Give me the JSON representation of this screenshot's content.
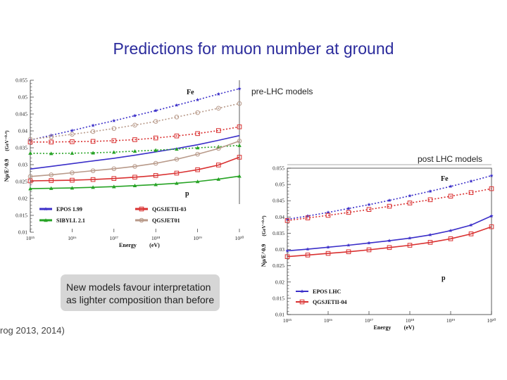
{
  "slide": {
    "title": "Predictions for muon number at ground",
    "callout": "New models favour interpretation\nas lighter composition than before",
    "reference": "rog 2013, 2014)"
  },
  "colors": {
    "title": "#2b2b9c",
    "epos": "#3b2fc9",
    "qgs": "#d93030",
    "sibyll": "#26a324",
    "qgs01": "#b89a8a"
  },
  "chart_data": [
    {
      "type": "line",
      "panel_label": "pre-LHC models",
      "xlabel": "Energy",
      "xunit": "(eV)",
      "ylabel": "Nμ/E^0.9",
      "yunit": "(GeV⁻⁰·⁹)",
      "xscale": "log",
      "xlim": [
        15,
        20
      ],
      "ylim": [
        0.01,
        0.055
      ],
      "xticks": [
        "10¹⁵",
        "10¹⁶",
        "10¹⁷",
        "10¹⁸",
        "10¹⁹",
        "10²⁰"
      ],
      "yticks": [
        "0.01",
        "0.015",
        "0.02",
        "0.025",
        "0.03",
        "0.035",
        "0.04",
        "0.045",
        "0.05",
        "0.055"
      ],
      "primary_labels": [
        "Fe",
        "p"
      ],
      "legend_placement": "bottom",
      "series": [
        {
          "name": "EPOS 1.99",
          "color": "epos",
          "marker": "star",
          "group": "Fe",
          "x": [
            15,
            15.5,
            16,
            16.5,
            17,
            17.5,
            18,
            18.5,
            19,
            19.5,
            20
          ],
          "y": [
            0.0373,
            0.0387,
            0.0401,
            0.0416,
            0.043,
            0.0445,
            0.046,
            0.0476,
            0.0492,
            0.0509,
            0.0525
          ]
        },
        {
          "name": "EPOS 1.99",
          "color": "epos",
          "marker": "none",
          "group": "p",
          "x": [
            15,
            15.5,
            16,
            16.5,
            17,
            17.5,
            18,
            18.5,
            19,
            19.5,
            20
          ],
          "y": [
            0.0287,
            0.0295,
            0.0303,
            0.0311,
            0.0319,
            0.0328,
            0.0338,
            0.0348,
            0.0359,
            0.0372,
            0.0386
          ]
        },
        {
          "name": "QGSJETII-03",
          "color": "qgs",
          "marker": "square",
          "group": "Fe",
          "x": [
            15,
            15.5,
            16,
            16.5,
            17,
            17.5,
            18,
            18.5,
            19,
            19.5,
            20
          ],
          "y": [
            0.0367,
            0.0367,
            0.0368,
            0.0369,
            0.0371,
            0.0374,
            0.0379,
            0.0385,
            0.0392,
            0.0401,
            0.0412
          ]
        },
        {
          "name": "QGSJETII-03",
          "color": "qgs",
          "marker": "square",
          "group": "p",
          "x": [
            15,
            15.5,
            16,
            16.5,
            17,
            17.5,
            18,
            18.5,
            19,
            19.5,
            20
          ],
          "y": [
            0.0252,
            0.0253,
            0.0254,
            0.0256,
            0.0259,
            0.0263,
            0.0268,
            0.0275,
            0.0285,
            0.0299,
            0.0322
          ]
        },
        {
          "name": "SIBYLL 2.1",
          "color": "sibyll",
          "marker": "triangle",
          "group": "Fe",
          "x": [
            15,
            15.5,
            16,
            16.5,
            17,
            17.5,
            18,
            18.5,
            19,
            19.5,
            20
          ],
          "y": [
            0.0334,
            0.0333,
            0.0334,
            0.0335,
            0.0337,
            0.034,
            0.0343,
            0.0346,
            0.035,
            0.0353,
            0.0357
          ]
        },
        {
          "name": "SIBYLL 2.1",
          "color": "sibyll",
          "marker": "triangle",
          "group": "p",
          "x": [
            15,
            15.5,
            16,
            16.5,
            17,
            17.5,
            18,
            18.5,
            19,
            19.5,
            20
          ],
          "y": [
            0.0229,
            0.023,
            0.0231,
            0.0233,
            0.0235,
            0.0238,
            0.0241,
            0.0245,
            0.025,
            0.0257,
            0.0266
          ]
        },
        {
          "name": "QGSJET01",
          "color": "qgs01",
          "marker": "circle",
          "group": "Fe",
          "x": [
            15,
            15.5,
            16,
            16.5,
            17,
            17.5,
            18,
            18.5,
            19,
            19.5,
            20
          ],
          "y": [
            0.0375,
            0.0382,
            0.039,
            0.0398,
            0.0407,
            0.0417,
            0.0428,
            0.0441,
            0.0454,
            0.0467,
            0.0481
          ]
        },
        {
          "name": "QGSJET01",
          "color": "qgs01",
          "marker": "circle",
          "group": "p",
          "x": [
            15,
            15.5,
            16,
            16.5,
            17,
            17.5,
            18,
            18.5,
            19,
            19.5,
            20
          ],
          "y": [
            0.0265,
            0.027,
            0.0276,
            0.0282,
            0.0288,
            0.0295,
            0.0304,
            0.0316,
            0.0331,
            0.0348,
            0.037
          ]
        }
      ],
      "legend": [
        "EPOS 1.99",
        "QGSJETII-03",
        "SIBYLL 2.1",
        "QGSJET01"
      ]
    },
    {
      "type": "line",
      "panel_label": "post LHC models",
      "xlabel": "Energy",
      "xunit": "(eV)",
      "ylabel": "Nμ/E^0.9",
      "yunit": "(GeV⁻⁰·⁹)",
      "xscale": "log",
      "xlim": [
        15,
        20
      ],
      "ylim": [
        0.01,
        0.055
      ],
      "xticks": [
        "10¹⁵",
        "10¹⁶",
        "10¹⁷",
        "10¹⁸",
        "10¹⁹",
        "10²⁰"
      ],
      "yticks": [
        "0.01",
        "0.015",
        "0.02",
        "0.025",
        "0.03",
        "0.035",
        "0.04",
        "0.045",
        "0.05",
        "0.055"
      ],
      "primary_labels": [
        "Fe",
        "p"
      ],
      "legend_placement": "bottom-left",
      "series": [
        {
          "name": "EPOS LHC",
          "color": "epos",
          "marker": "star",
          "group": "Fe",
          "x": [
            15,
            15.5,
            16,
            16.5,
            17,
            17.5,
            18,
            18.5,
            19,
            19.5,
            20
          ],
          "y": [
            0.0393,
            0.0403,
            0.0414,
            0.0426,
            0.0438,
            0.0451,
            0.0465,
            0.0479,
            0.0494,
            0.051,
            0.0527
          ]
        },
        {
          "name": "EPOS LHC",
          "color": "epos",
          "marker": "star",
          "group": "p",
          "x": [
            15,
            15.5,
            16,
            16.5,
            17,
            17.5,
            18,
            18.5,
            19,
            19.5,
            20
          ],
          "y": [
            0.0296,
            0.0301,
            0.0307,
            0.0313,
            0.032,
            0.0327,
            0.0335,
            0.0345,
            0.0358,
            0.0375,
            0.0403
          ]
        },
        {
          "name": "QGSJETII-04",
          "color": "qgs",
          "marker": "square",
          "group": "Fe",
          "x": [
            15,
            15.5,
            16,
            16.5,
            17,
            17.5,
            18,
            18.5,
            19,
            19.5,
            20
          ],
          "y": [
            0.0389,
            0.0397,
            0.0405,
            0.0414,
            0.0423,
            0.0433,
            0.0443,
            0.0453,
            0.0464,
            0.0475,
            0.0487
          ]
        },
        {
          "name": "QGSJETII-04",
          "color": "qgs",
          "marker": "square",
          "group": "p",
          "x": [
            15,
            15.5,
            16,
            16.5,
            17,
            17.5,
            18,
            18.5,
            19,
            19.5,
            20
          ],
          "y": [
            0.0278,
            0.0283,
            0.0288,
            0.0293,
            0.0299,
            0.0306,
            0.0313,
            0.0322,
            0.0333,
            0.0348,
            0.037
          ]
        }
      ],
      "legend": [
        "EPOS LHC",
        "QGSJETII-04"
      ]
    }
  ]
}
